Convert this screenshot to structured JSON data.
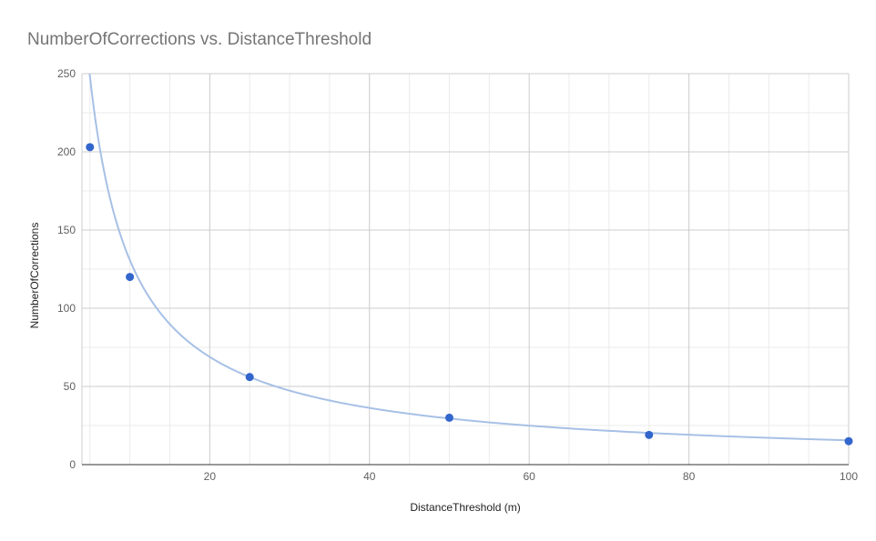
{
  "chart_data": {
    "type": "scatter",
    "title": "NumberOfCorrections vs. DistanceThreshold",
    "xlabel": "DistanceThreshold (m)",
    "ylabel": "NumberOfCorrections",
    "xlim": [
      4,
      100
    ],
    "ylim": [
      0,
      250
    ],
    "x_ticks": [
      20,
      40,
      60,
      80,
      100
    ],
    "y_ticks": [
      0,
      50,
      100,
      150,
      200,
      250
    ],
    "grid": true,
    "legend": "none",
    "series": [
      {
        "x": [
          5,
          10,
          25,
          50,
          75,
          100
        ],
        "y": [
          203,
          120,
          56,
          30,
          19,
          15
        ]
      }
    ],
    "trendline": {
      "type": "power",
      "coefficient": 1100,
      "exponent": -0.925
    },
    "colors": {
      "point": "#3366cc",
      "trendline": "#a7c0e6",
      "major_grid": "#cccccc",
      "minor_grid": "#ebebeb",
      "axis": "#333333",
      "title": "#757575"
    }
  }
}
